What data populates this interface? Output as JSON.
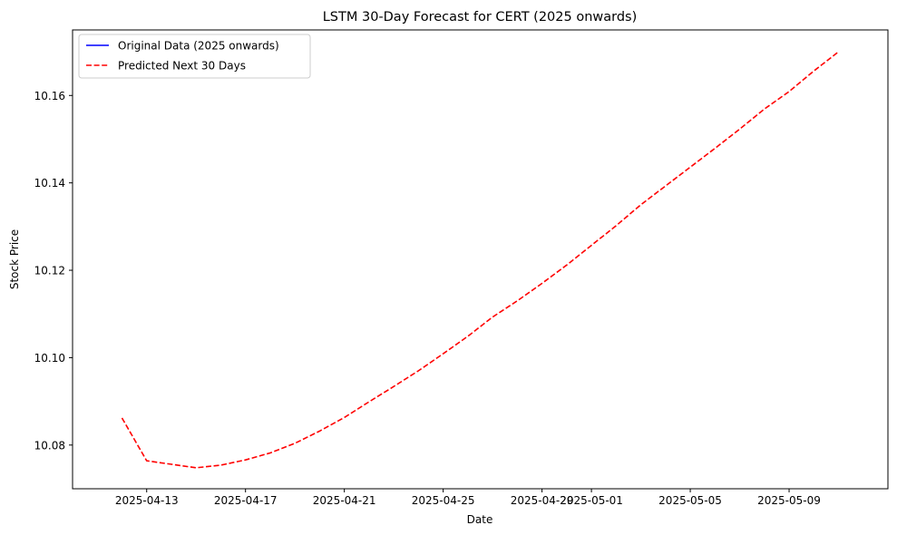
{
  "chart_data": {
    "type": "line",
    "title": "LSTM 30-Day Forecast for CERT (2025 onwards)",
    "xlabel": "Date",
    "ylabel": "Stock Price",
    "x_axis_type": "date",
    "xlim": [
      "2025-04-10",
      "2025-05-13"
    ],
    "ylim": [
      10.07,
      10.175
    ],
    "x_ticks": [
      "2025-04-13",
      "2025-04-17",
      "2025-04-21",
      "2025-04-25",
      "2025-04-29",
      "2025-05-01",
      "2025-05-05",
      "2025-05-09"
    ],
    "y_ticks": [
      "10.08",
      "10.10",
      "10.12",
      "10.14",
      "10.16"
    ],
    "grid": false,
    "legend_position": "top-left",
    "series": [
      {
        "name": "Original Data (2025 onwards)",
        "color": "#0000ff",
        "style": "solid",
        "x": [],
        "y": []
      },
      {
        "name": "Predicted Next 30 Days",
        "color": "#ff0000",
        "style": "dashed",
        "x": [
          "2025-04-12",
          "2025-04-13",
          "2025-04-14",
          "2025-04-15",
          "2025-04-16",
          "2025-04-17",
          "2025-04-18",
          "2025-04-19",
          "2025-04-20",
          "2025-04-21",
          "2025-04-22",
          "2025-04-23",
          "2025-04-24",
          "2025-04-25",
          "2025-04-26",
          "2025-04-27",
          "2025-04-28",
          "2025-04-29",
          "2025-04-30",
          "2025-05-01",
          "2025-05-02",
          "2025-05-03",
          "2025-05-04",
          "2025-05-05",
          "2025-05-06",
          "2025-05-07",
          "2025-05-08",
          "2025-05-09",
          "2025-05-10",
          "2025-05-11"
        ],
        "y": [
          10.0862,
          10.0764,
          10.0756,
          10.0748,
          10.0754,
          10.0766,
          10.0782,
          10.0804,
          10.0832,
          10.0863,
          10.0899,
          10.0934,
          10.097,
          10.1009,
          10.1049,
          10.1093,
          10.113,
          10.117,
          10.1212,
          10.1257,
          10.1302,
          10.135,
          10.1393,
          10.1436,
          10.1479,
          10.1523,
          10.1569,
          10.1609,
          10.1656,
          10.17
        ]
      }
    ]
  }
}
